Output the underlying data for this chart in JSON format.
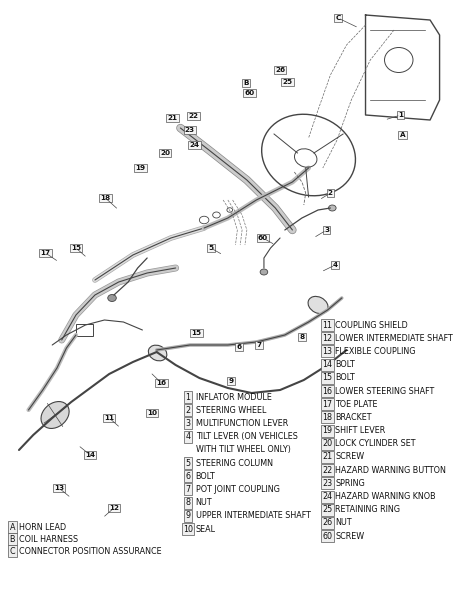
{
  "bg_color": "#f5f5f0",
  "legend_left": [
    [
      "1",
      "INFLATOR MODULE"
    ],
    [
      "2",
      "STEERING WHEEL"
    ],
    [
      "3",
      "MULTIFUNCTION LEVER"
    ],
    [
      "4",
      "TILT LEVER (ON VEHICLES"
    ],
    [
      "4b",
      "WITH TILT WHEEL ONLY)"
    ],
    [
      "5",
      "STEERING COLUMN"
    ],
    [
      "6",
      "BOLT"
    ],
    [
      "7",
      "POT JOINT COUPLING"
    ],
    [
      "8",
      "NUT"
    ],
    [
      "9",
      "UPPER INTERMEDIATE SHAFT"
    ],
    [
      "10",
      "SEAL"
    ]
  ],
  "legend_right": [
    [
      "11",
      "COUPLING SHIELD"
    ],
    [
      "12",
      "LOWER INTERMEDIATE SHAFT"
    ],
    [
      "13",
      "FLEXIBLE COUPLING"
    ],
    [
      "14",
      "BOLT"
    ],
    [
      "15",
      "BOLT"
    ],
    [
      "16",
      "LOWER STEERING SHAFT"
    ],
    [
      "17",
      "TOE PLATE"
    ],
    [
      "18",
      "BRACKET"
    ],
    [
      "19",
      "SHIFT LEVER"
    ],
    [
      "20",
      "LOCK CYLINDER SET"
    ],
    [
      "21",
      "SCREW"
    ],
    [
      "22",
      "HAZARD WARNING BUTTON"
    ],
    [
      "23",
      "SPRING"
    ],
    [
      "24",
      "HAZARD WARNING KNOB"
    ],
    [
      "25",
      "RETAINING RING"
    ],
    [
      "26",
      "NUT"
    ],
    [
      "60",
      "SCREW"
    ]
  ],
  "legend_bottom": [
    [
      "A",
      "HORN LEAD"
    ],
    [
      "B",
      "COIL HARNESS"
    ],
    [
      "C",
      "CONNECTOR POSITION ASSURANCE"
    ]
  ],
  "lc": "#444444",
  "tc": "#111111",
  "fs": 5.8,
  "fs_label": 5.2
}
